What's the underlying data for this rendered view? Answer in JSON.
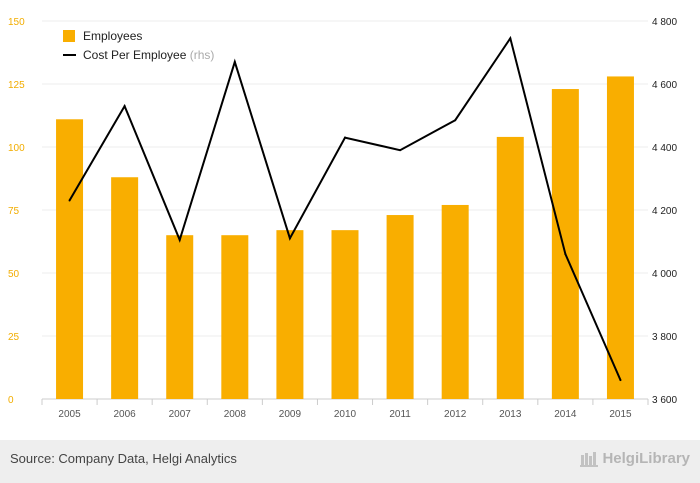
{
  "chart_data": {
    "type": "bar+line",
    "categories": [
      "2005",
      "2006",
      "2007",
      "2008",
      "2009",
      "2010",
      "2011",
      "2012",
      "2013",
      "2014",
      "2015"
    ],
    "series": [
      {
        "name": "Employees",
        "type": "bar",
        "axis": "left",
        "color": "#f9ae00",
        "values": [
          111,
          88,
          65,
          65,
          67,
          67,
          73,
          77,
          104,
          123,
          128
        ]
      },
      {
        "name": "Cost Per Employee",
        "name_suffix": "(rhs)",
        "type": "line",
        "axis": "right",
        "color": "#000000",
        "values": [
          4230,
          4530,
          4105,
          4670,
          4110,
          4430,
          4390,
          4485,
          4745,
          4060,
          3660
        ]
      }
    ],
    "y_left": {
      "min": 0,
      "max": 150,
      "ticks": [
        "0",
        "25",
        "50",
        "75",
        "100",
        "125",
        "150"
      ]
    },
    "y_right": {
      "min": 3600,
      "max": 4800,
      "ticks": [
        "3 600",
        "3 800",
        "4 000",
        "4 200",
        "4 400",
        "4 600",
        "4 800"
      ]
    },
    "grid": true,
    "legend": "top-left"
  },
  "footer": {
    "source": "Source: Company Data, Helgi Analytics",
    "brand": "HelgiLibrary"
  }
}
